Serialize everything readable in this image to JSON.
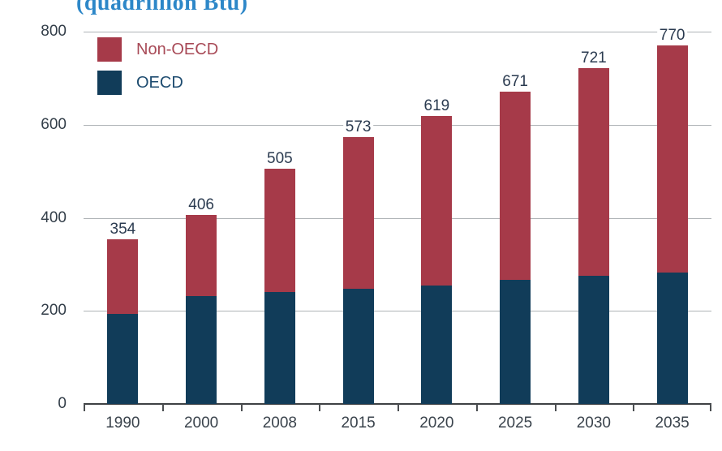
{
  "title": "(quadrillion Btu)",
  "title_color": "#2d87c8",
  "legend": {
    "items": [
      {
        "label": "Non-OECD",
        "color": "#a63a49",
        "text_color": "#a84a57"
      },
      {
        "label": "OECD",
        "color": "#113c59",
        "text_color": "#1e4c70"
      }
    ]
  },
  "chart_data": {
    "type": "bar",
    "stacked": true,
    "title": "(quadrillion Btu)",
    "categories": [
      "1990",
      "2000",
      "2008",
      "2015",
      "2020",
      "2025",
      "2030",
      "2035"
    ],
    "series": [
      {
        "name": "OECD",
        "color": "#113c59",
        "values": [
          193,
          231,
          240,
          248,
          255,
          266,
          275,
          283
        ]
      },
      {
        "name": "Non-OECD",
        "color": "#a63a49",
        "values": [
          161,
          175,
          265,
          325,
          364,
          405,
          446,
          487
        ]
      }
    ],
    "totals": [
      354,
      406,
      505,
      573,
      619,
      671,
      721,
      770
    ],
    "total_labels": [
      "354",
      "406",
      "505",
      "573",
      "619",
      "671",
      "721",
      "770"
    ],
    "ylim": [
      0,
      800
    ],
    "yticks": [
      0,
      200,
      400,
      600,
      800
    ],
    "ytick_labels": [
      "0",
      "200",
      "400",
      "600",
      "800"
    ],
    "grid": true,
    "legend_position": "top-left"
  }
}
